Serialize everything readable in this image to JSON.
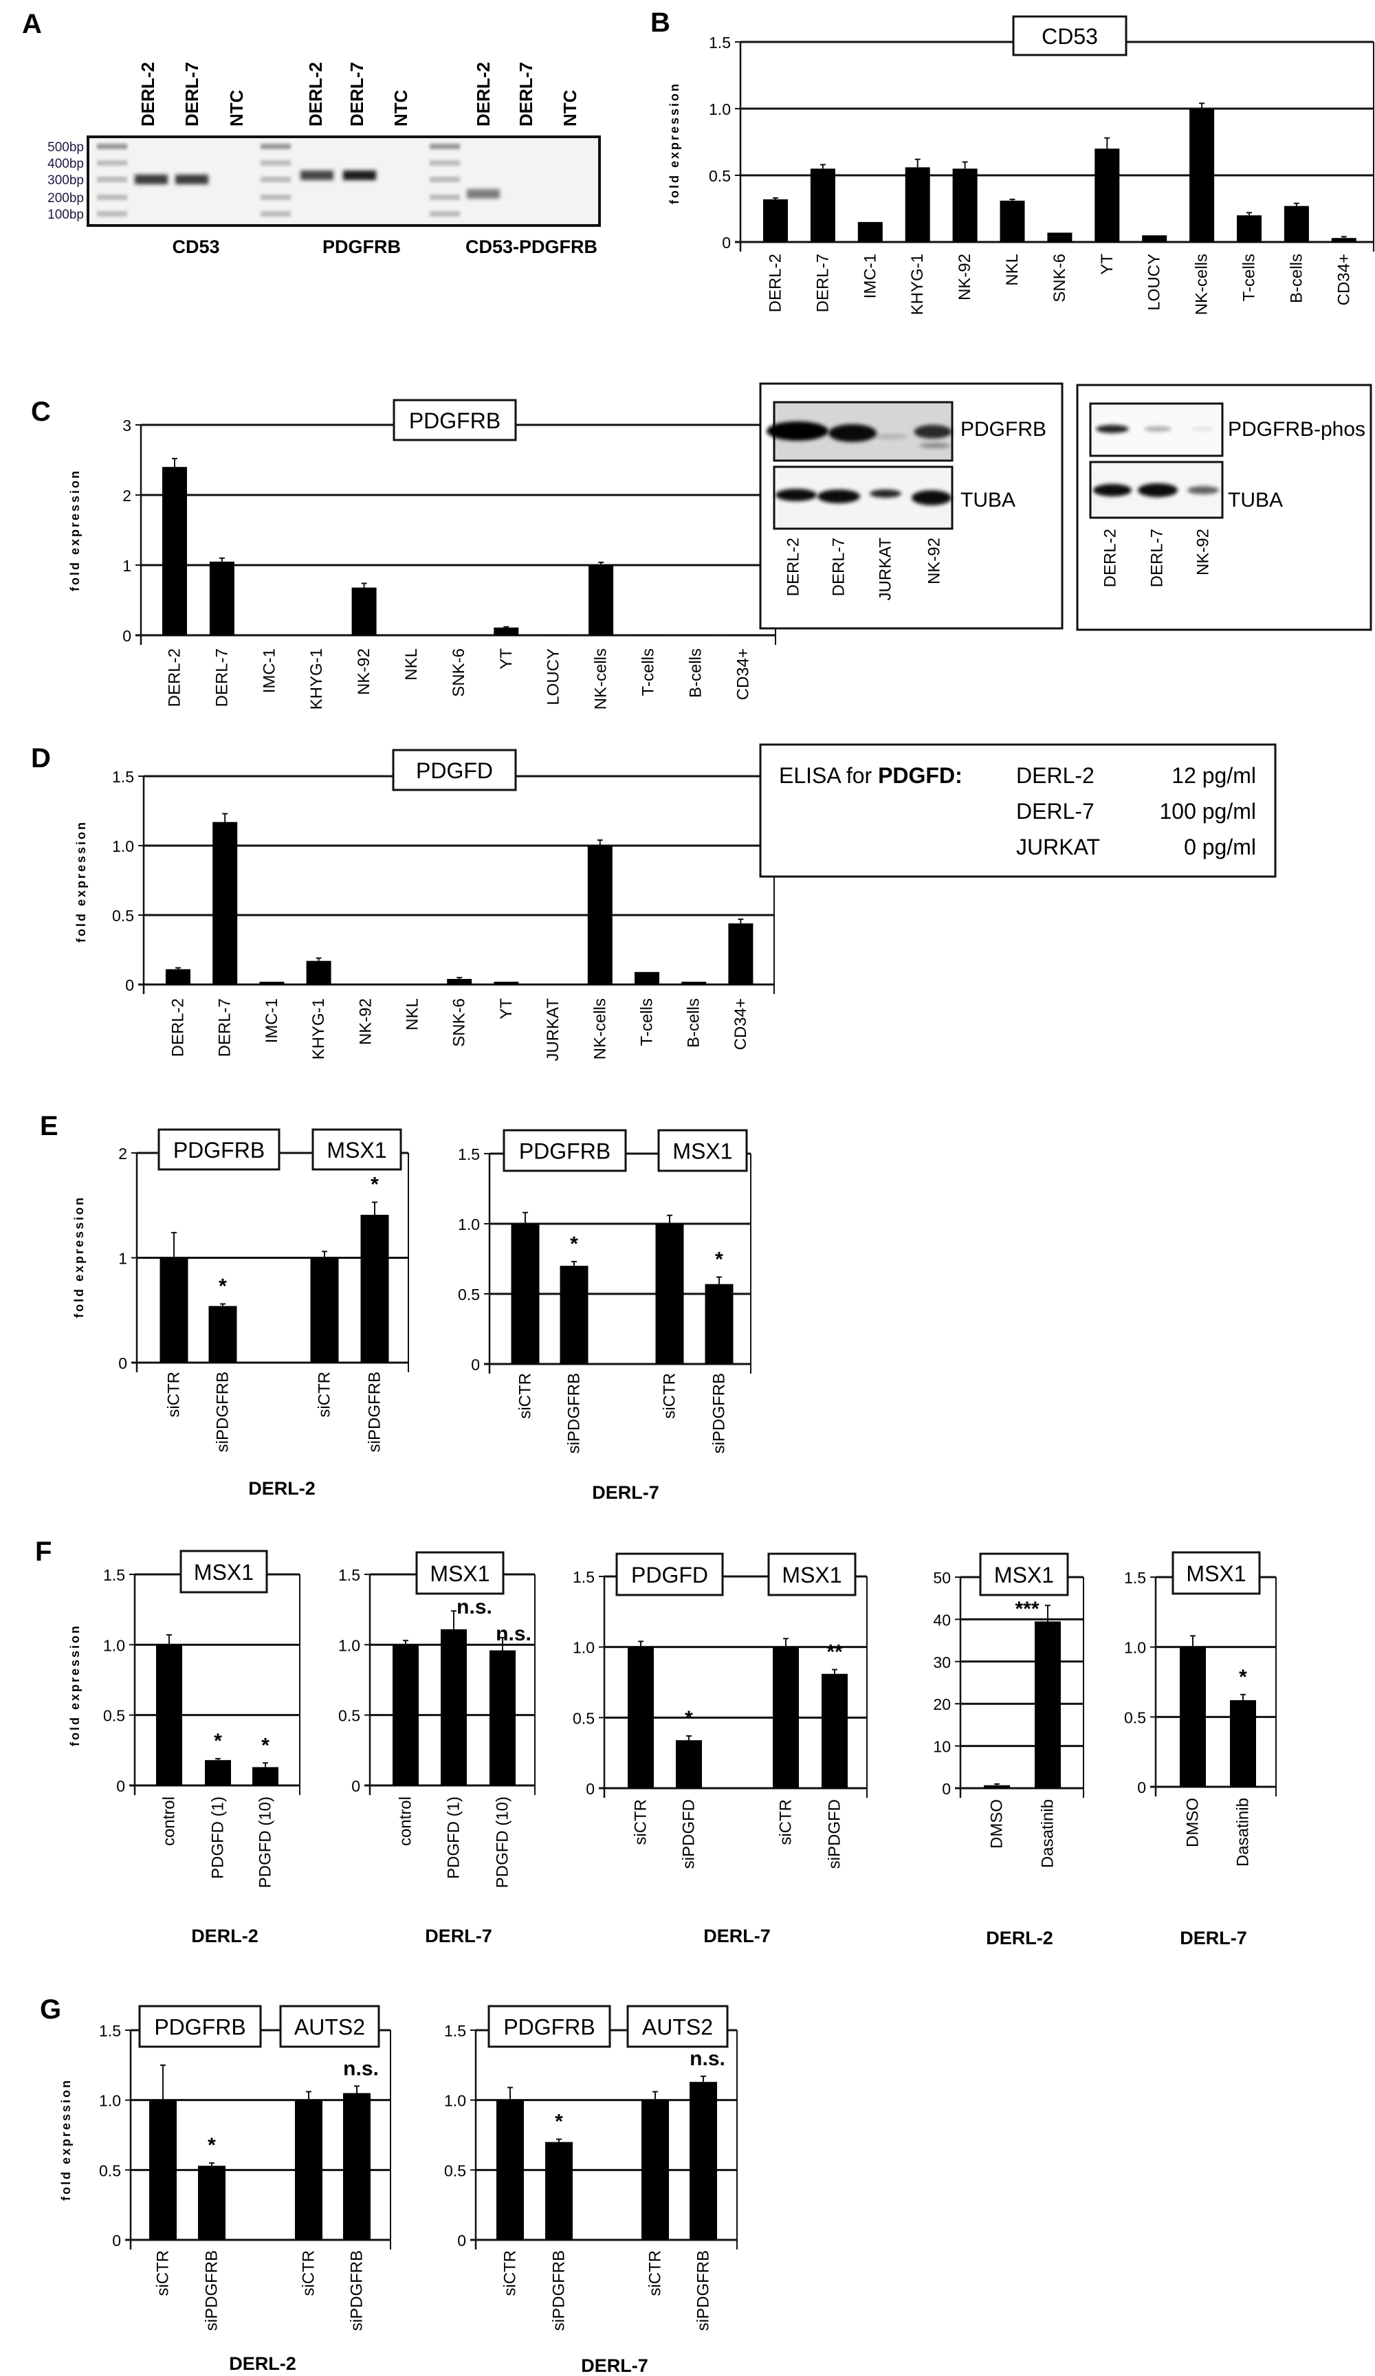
{
  "panel_labels": [
    "A",
    "B",
    "C",
    "D",
    "E",
    "F",
    "G"
  ],
  "colors": {
    "bar": "#000000",
    "gel_background": "#f3f3f3",
    "band": "#1a1a1a"
  },
  "gel": {
    "lanes": [
      "DERL-2",
      "DERL-7",
      "NTC",
      "DERL-2",
      "DERL-7",
      "NTC",
      "DERL-2",
      "DERL-7",
      "NTC"
    ],
    "markers": [
      "500bp",
      "400bp",
      "300bp",
      "200bp",
      "100bp"
    ],
    "genes": [
      "CD53",
      "PDGFRB",
      "CD53-PDGFRB"
    ]
  },
  "westerns": [
    {
      "proteins": [
        "PDGFRB",
        "TUBA"
      ],
      "lanes": [
        "DERL-2",
        "DERL-7",
        "JURKAT",
        "NK-92"
      ]
    },
    {
      "proteins": [
        "PDGFRB-phos",
        "TUBA"
      ],
      "lanes": [
        "DERL-2",
        "DERL-7",
        "NK-92"
      ]
    }
  ],
  "elisa": {
    "prefix": "ELISA for ",
    "analyte": "PDGFD:",
    "rows": [
      {
        "cell": "DERL-2",
        "value": "12 pg/ml"
      },
      {
        "cell": "DERL-7",
        "value": "100 pg/ml"
      },
      {
        "cell": "JURKAT",
        "value": "0 pg/ml"
      }
    ]
  },
  "chart_data": [
    {
      "panel": "B",
      "type": "bar",
      "titles": [
        "CD53"
      ],
      "ylabel": "fold expression",
      "xlabel": "",
      "ylim": [
        0,
        1.5
      ],
      "yticks": [
        0,
        0.5,
        1,
        1.5
      ],
      "ytick_labels": [
        "0",
        "0.5",
        "1.0",
        "1.5"
      ],
      "grid": true,
      "categories": [
        "DERL-2",
        "DERL-7",
        "IMC-1",
        "KHYG-1",
        "NK-92",
        "NKL",
        "SNK-6",
        "YT",
        "LOUCY",
        "NK-cells",
        "T-cells",
        "B-cells",
        "CD34+"
      ],
      "values": [
        0.32,
        0.55,
        0.15,
        0.56,
        0.55,
        0.31,
        0.07,
        0.7,
        0.05,
        1.0,
        0.2,
        0.27,
        0.03
      ],
      "errors": [
        0.01,
        0.03,
        0,
        0.06,
        0.05,
        0.01,
        0,
        0.08,
        0,
        0.04,
        0.02,
        0.02,
        0.01
      ],
      "significance": []
    },
    {
      "panel": "C",
      "type": "bar",
      "titles": [
        "PDGFRB"
      ],
      "ylabel": "fold expression",
      "xlabel": "",
      "ylim": [
        0,
        3
      ],
      "yticks": [
        0,
        1,
        2,
        3
      ],
      "ytick_labels": [
        "0",
        "1",
        "2",
        "3"
      ],
      "grid": true,
      "categories": [
        "DERL-2",
        "DERL-7",
        "IMC-1",
        "KHYG-1",
        "NK-92",
        "NKL",
        "SNK-6",
        "YT",
        "LOUCY",
        "NK-cells",
        "T-cells",
        "B-cells",
        "CD34+"
      ],
      "values": [
        2.4,
        1.05,
        0,
        0,
        0.68,
        0,
        0,
        0.11,
        0.01,
        1.0,
        0.01,
        0.01,
        0.01
      ],
      "errors": [
        0.12,
        0.05,
        0,
        0,
        0.06,
        0,
        0,
        0.01,
        0,
        0.04,
        0,
        0,
        0
      ],
      "significance": []
    },
    {
      "panel": "D",
      "type": "bar",
      "titles": [
        "PDGFD"
      ],
      "ylabel": "fold expression",
      "xlabel": "",
      "ylim": [
        0,
        1.5
      ],
      "yticks": [
        0,
        0.5,
        1,
        1.5
      ],
      "ytick_labels": [
        "0",
        "0.5",
        "1.0",
        "1.5"
      ],
      "grid": true,
      "categories": [
        "DERL-2",
        "DERL-7",
        "IMC-1",
        "KHYG-1",
        "NK-92",
        "NKL",
        "SNK-6",
        "YT",
        "JURKAT",
        "NK-cells",
        "T-cells",
        "B-cells",
        "CD34+"
      ],
      "values": [
        0.11,
        1.17,
        0.02,
        0.17,
        0,
        0,
        0.04,
        0.02,
        0,
        1.0,
        0.09,
        0.02,
        0.44
      ],
      "errors": [
        0.01,
        0.06,
        0,
        0.02,
        0,
        0,
        0.01,
        0,
        0,
        0.04,
        0,
        0,
        0.03
      ],
      "significance": []
    },
    {
      "panel": "E",
      "type": "bar",
      "titles": [
        "PDGFRB",
        "MSX1"
      ],
      "ylabel": "fold expression",
      "xlabel": "DERL-2",
      "ylim": [
        0,
        2
      ],
      "yticks": [
        0,
        1,
        2
      ],
      "ytick_labels": [
        "0",
        "1",
        "2"
      ],
      "grid": true,
      "categories": [
        "siCTR",
        "siPDGFRB",
        "siCTR",
        "siPDGFRB"
      ],
      "values": [
        1.0,
        0.54,
        1.0,
        1.41
      ],
      "errors": [
        0.24,
        0.02,
        0.06,
        0.12
      ],
      "significance": [
        "",
        "*",
        "",
        "*"
      ]
    },
    {
      "panel": "E",
      "type": "bar",
      "titles": [
        "PDGFRB",
        "MSX1"
      ],
      "xlabel": "DERL-7",
      "ylim": [
        0,
        1.5
      ],
      "yticks": [
        0,
        0.5,
        1,
        1.5
      ],
      "ytick_labels": [
        "0",
        "0.5",
        "1.0",
        "1.5"
      ],
      "grid": true,
      "categories": [
        "siCTR",
        "siPDGFRB",
        "siCTR",
        "siPDGFRB"
      ],
      "values": [
        1.0,
        0.7,
        1.0,
        0.57
      ],
      "errors": [
        0.08,
        0.03,
        0.06,
        0.05
      ],
      "significance": [
        "",
        "*",
        "",
        "*"
      ]
    },
    {
      "panel": "F",
      "type": "bar",
      "titles": [
        "MSX1"
      ],
      "ylabel": "fold expression",
      "xlabel": "DERL-2",
      "ylim": [
        0,
        1.5
      ],
      "yticks": [
        0,
        0.5,
        1,
        1.5
      ],
      "ytick_labels": [
        "0",
        "0.5",
        "1.0",
        "1.5"
      ],
      "grid": true,
      "categories": [
        "control",
        "PDGFD (1)",
        "PDGFD (10)"
      ],
      "values": [
        1.0,
        0.18,
        0.13
      ],
      "errors": [
        0.07,
        0.01,
        0.03
      ],
      "significance": [
        "",
        "*",
        "*"
      ]
    },
    {
      "panel": "F",
      "type": "bar",
      "titles": [
        "MSX1"
      ],
      "xlabel": "DERL-7",
      "ylim": [
        0,
        1.5
      ],
      "yticks": [
        0,
        0.5,
        1,
        1.5
      ],
      "ytick_labels": [
        "0",
        "0.5",
        "1.0",
        "1.5"
      ],
      "grid": true,
      "categories": [
        "control",
        "PDGFD (1)",
        "PDGFD (10)"
      ],
      "values": [
        1.0,
        1.11,
        0.96
      ],
      "errors": [
        0.03,
        0.13,
        0.09
      ],
      "significance": [
        "",
        "n.s.",
        "n.s."
      ]
    },
    {
      "panel": "F",
      "type": "bar",
      "titles": [
        "PDGFD",
        "MSX1"
      ],
      "xlabel": "DERL-7",
      "ylim": [
        0,
        1.5
      ],
      "yticks": [
        0,
        0.5,
        1,
        1.5
      ],
      "ytick_labels": [
        "0",
        "0.5",
        "1.0",
        "1.5"
      ],
      "grid": true,
      "categories": [
        "siCTR",
        "siPDGFD",
        "siCTR",
        "siPDGFD"
      ],
      "values": [
        1.0,
        0.34,
        1.0,
        0.81
      ],
      "errors": [
        0.04,
        0.03,
        0.06,
        0.03
      ],
      "significance": [
        "",
        "*",
        "",
        "**"
      ]
    },
    {
      "panel": "F",
      "type": "bar",
      "titles": [
        "MSX1"
      ],
      "xlabel": "DERL-2",
      "ylim": [
        0,
        50
      ],
      "yticks": [
        0,
        10,
        20,
        30,
        40,
        50
      ],
      "ytick_labels": [
        "0",
        "10",
        "20",
        "30",
        "40",
        "50"
      ],
      "grid": true,
      "categories": [
        "DMSO",
        "Dasatinib"
      ],
      "values": [
        0.7,
        39.5
      ],
      "errors": [
        0.3,
        3.8
      ],
      "significance": [
        "",
        "***"
      ]
    },
    {
      "panel": "F",
      "type": "bar",
      "titles": [
        "MSX1"
      ],
      "xlabel": "DERL-7",
      "ylim": [
        0,
        1.5
      ],
      "yticks": [
        0,
        0.5,
        1,
        1.5
      ],
      "ytick_labels": [
        "0",
        "0.5",
        "1.0",
        "1.5"
      ],
      "grid": true,
      "categories": [
        "DMSO",
        "Dasatinib"
      ],
      "values": [
        1.0,
        0.62
      ],
      "errors": [
        0.08,
        0.04
      ],
      "significance": [
        "",
        "*"
      ]
    },
    {
      "panel": "G",
      "type": "bar",
      "titles": [
        "PDGFRB",
        "AUTS2"
      ],
      "ylabel": "fold expression",
      "xlabel": "DERL-2",
      "ylim": [
        0,
        1.5
      ],
      "yticks": [
        0,
        0.5,
        1,
        1.5
      ],
      "ytick_labels": [
        "0",
        "0.5",
        "1.0",
        "1.5"
      ],
      "grid": true,
      "categories": [
        "siCTR",
        "siPDGFRB",
        "siCTR",
        "siPDGFRB"
      ],
      "values": [
        1.0,
        0.53,
        1.0,
        1.05
      ],
      "errors": [
        0.25,
        0.02,
        0.06,
        0.05
      ],
      "significance": [
        "",
        "*",
        "",
        "n.s."
      ]
    },
    {
      "panel": "G",
      "type": "bar",
      "titles": [
        "PDGFRB",
        "AUTS2"
      ],
      "xlabel": "DERL-7",
      "ylim": [
        0,
        1.5
      ],
      "yticks": [
        0,
        0.5,
        1,
        1.5
      ],
      "ytick_labels": [
        "0",
        "0.5",
        "1.0",
        "1.5"
      ],
      "grid": true,
      "categories": [
        "siCTR",
        "siPDGFRB",
        "siCTR",
        "siPDGFRB"
      ],
      "values": [
        1.0,
        0.7,
        1.0,
        1.13
      ],
      "errors": [
        0.09,
        0.02,
        0.06,
        0.04
      ],
      "significance": [
        "",
        "*",
        "",
        "n.s."
      ]
    }
  ]
}
